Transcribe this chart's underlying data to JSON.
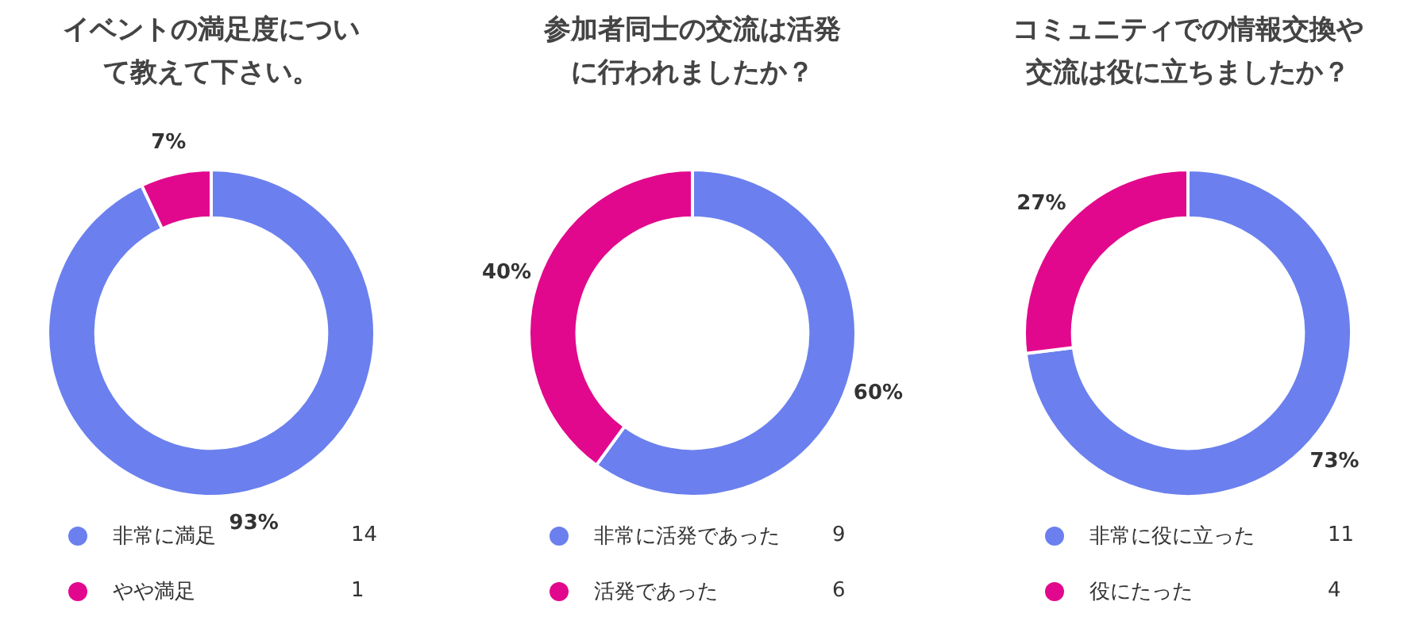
{
  "chart_data": [
    {
      "type": "donut",
      "title": "イベントの満足度について教えて下さい。",
      "categories": [
        "非常に満足",
        "やや満足"
      ],
      "values": [
        93,
        7
      ],
      "colors": [
        "#6b80ee",
        "#e2088d"
      ],
      "value_labels": [
        "93%",
        "7%"
      ],
      "annotations": [
        "14",
        "1"
      ],
      "legend": "bottom"
    },
    {
      "type": "donut",
      "title": "参加者同士の交流は活発に行われましたか？",
      "categories": [
        "非常に活発であった",
        "活発であった"
      ],
      "values": [
        60,
        40
      ],
      "colors": [
        "#6b80ee",
        "#e2088d"
      ],
      "value_labels": [
        "60%",
        "40%"
      ],
      "annotations": [
        "9",
        "6"
      ],
      "legend": "bottom"
    },
    {
      "type": "donut",
      "title": "コミュニティでの情報交換や交流は役に立ちましたか？",
      "categories": [
        "非常に役に立った",
        "役にたった"
      ],
      "values": [
        73,
        27
      ],
      "colors": [
        "#6b80ee",
        "#e2088d"
      ],
      "value_labels": [
        "73%",
        "27%"
      ],
      "annotations": [
        "11",
        "4"
      ],
      "legend": "bottom"
    }
  ]
}
